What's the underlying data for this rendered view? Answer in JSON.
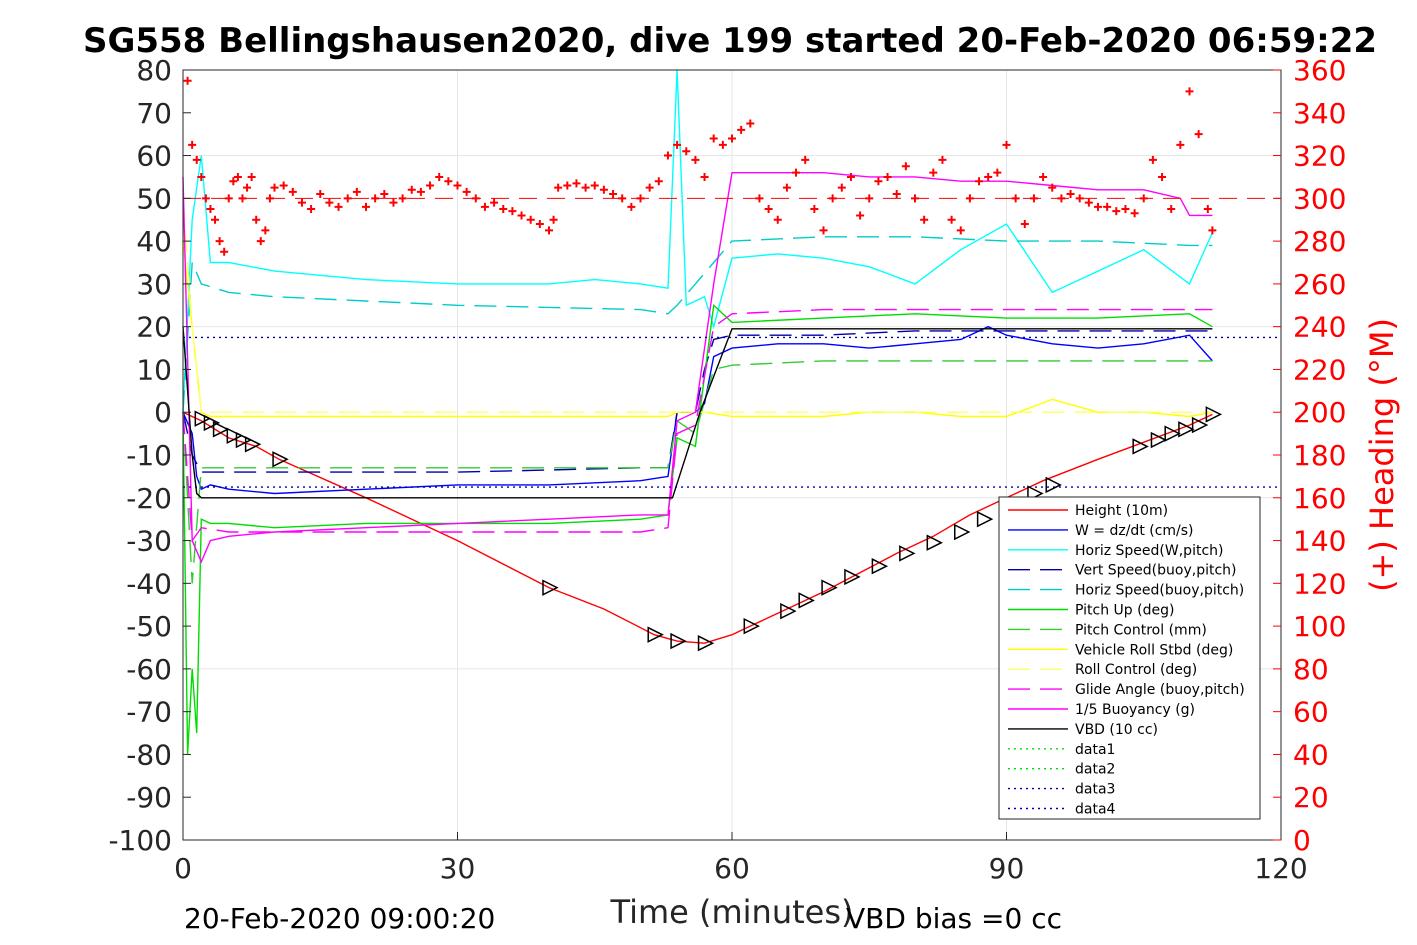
{
  "chart_data": {
    "type": "line",
    "title": "SG558 Bellingshausen2020, dive 199 started 20-Feb-2020 06:59:22",
    "xlabel": "Time (minutes)",
    "ylabel": "",
    "y2label": "(+) Heading (°M)",
    "xlim": [
      0,
      120
    ],
    "ylim": [
      -100,
      80
    ],
    "y2lim": [
      0,
      360
    ],
    "xticks": [
      "0",
      "30",
      "60",
      "90",
      "120"
    ],
    "yticks": [
      "80",
      "70",
      "60",
      "50",
      "40",
      "30",
      "20",
      "10",
      "0",
      "-10",
      "-20",
      "-30",
      "-40",
      "-50",
      "-60",
      "-70",
      "-80",
      "-90",
      "-100"
    ],
    "y2ticks": [
      "360",
      "340",
      "320",
      "300",
      "280",
      "260",
      "240",
      "220",
      "200",
      "180",
      "160",
      "140",
      "120",
      "100",
      "80",
      "60",
      "40",
      "20",
      "0"
    ],
    "grid": true,
    "legend_position": "bottom-right",
    "footer_left": "20-Feb-2020 09:00:20",
    "footer_right": "VBD bias =0 cc",
    "colors": {
      "red": "#ff0000",
      "blue": "#0000ff",
      "cyan": "#00ffff",
      "darkblue": "#0000aa",
      "green": "#00dd00",
      "yellow": "#ffff00",
      "magenta": "#ff00ff",
      "black": "#000000"
    },
    "series": [
      {
        "name": "Height (10m)",
        "color": "#ff0000",
        "style": "solid",
        "x": [
          0,
          2,
          5,
          8,
          10.5,
          20,
          30,
          40,
          46,
          51.5,
          54,
          57,
          60,
          62,
          66,
          70,
          74,
          78,
          82,
          86,
          90,
          94,
          100,
          105,
          110,
          112.5
        ],
        "y": [
          0,
          -2,
          -6,
          -8,
          -11,
          -20,
          -30,
          -41,
          -46,
          -52,
          -53.5,
          -54,
          -52,
          -50,
          -46,
          -42,
          -37.5,
          -33,
          -29,
          -24,
          -20,
          -16,
          -11,
          -7,
          -3,
          -0.5
        ]
      },
      {
        "name": "W = dz/dt (cm/s)",
        "color": "#0000ff",
        "style": "solid",
        "x": [
          0,
          1,
          1.5,
          2,
          3,
          5,
          10,
          20,
          30,
          40,
          50,
          53,
          54,
          56,
          57,
          58,
          60,
          65,
          70,
          75,
          80,
          85,
          88,
          90,
          95,
          100,
          105,
          110,
          112.5
        ],
        "y": [
          0,
          -5,
          -15,
          -18,
          -17,
          -18,
          -19,
          -18,
          -17,
          -17,
          -16,
          -15,
          0,
          0,
          2,
          13,
          15,
          16,
          16,
          15,
          16,
          17,
          20,
          18,
          16,
          15,
          16,
          18,
          12
        ]
      },
      {
        "name": "Horiz Speed(W,pitch)",
        "color": "#00ffff",
        "style": "solid",
        "x": [
          0,
          1,
          2,
          3,
          5,
          10,
          20,
          30,
          40,
          45,
          50,
          53,
          54,
          55,
          57,
          58,
          60,
          65,
          70,
          75,
          80,
          85,
          90,
          95,
          100,
          105,
          110,
          112.5
        ],
        "y": [
          0,
          45,
          60,
          35,
          35,
          33,
          31,
          30,
          30,
          31,
          30,
          29,
          80,
          25,
          27,
          20,
          36,
          37,
          36,
          34,
          30,
          38,
          44,
          28,
          33,
          38,
          30,
          42
        ]
      },
      {
        "name": "Vert Speed(buoy,pitch)",
        "color": "#0000aa",
        "style": "dashed",
        "x": [
          0,
          1,
          2,
          5,
          10,
          20,
          30,
          40,
          50,
          53,
          54,
          56,
          57,
          58,
          60,
          70,
          80,
          90,
          100,
          110,
          112.5
        ],
        "y": [
          0,
          -10,
          -14,
          -14,
          -14,
          -14,
          -14,
          -13.5,
          -13,
          -13,
          0,
          0,
          10,
          17,
          18,
          18,
          19,
          19,
          19,
          19,
          19
        ]
      },
      {
        "name": "Horiz Speed(buoy,pitch)",
        "color": "#00cccc",
        "style": "dashed",
        "x": [
          0,
          1,
          2,
          5,
          10,
          20,
          30,
          40,
          50,
          53,
          54,
          56,
          58,
          60,
          70,
          80,
          90,
          100,
          110,
          112.5
        ],
        "y": [
          0,
          35,
          30,
          28,
          27,
          26,
          25,
          24.5,
          24,
          23,
          25,
          30,
          35,
          40,
          41,
          41,
          40,
          40,
          39,
          39
        ]
      },
      {
        "name": "Pitch Up (deg)",
        "color": "#00dd00",
        "style": "solid",
        "x": [
          0,
          0.5,
          1,
          1.5,
          2,
          3,
          5,
          10,
          20,
          30,
          40,
          50,
          53,
          54,
          56,
          58,
          60,
          70,
          80,
          90,
          100,
          110,
          112.5
        ],
        "y": [
          0,
          -80,
          -60,
          -75,
          -25,
          -26,
          -26,
          -27,
          -26,
          -26,
          -26,
          -25,
          -24,
          -6,
          -8,
          25,
          21,
          22,
          23,
          22,
          22,
          23,
          20
        ]
      },
      {
        "name": "Pitch Control (mm)",
        "color": "#33cc33",
        "style": "dashed",
        "x": [
          0,
          1,
          2,
          5,
          10,
          20,
          30,
          40,
          50,
          53,
          54,
          56,
          58,
          60,
          70,
          80,
          90,
          100,
          110,
          112.5
        ],
        "y": [
          0,
          -40,
          -13,
          -13,
          -13,
          -13,
          -13,
          -13,
          -13,
          -13,
          -2,
          -5,
          10,
          11,
          12,
          12,
          12,
          12,
          12,
          12
        ]
      },
      {
        "name": "Vehicle Roll Stbd (deg)",
        "color": "#ffff00",
        "style": "solid",
        "x": [
          0,
          1,
          2,
          3,
          5,
          10,
          15,
          20,
          30,
          40,
          50,
          53,
          54,
          55,
          57,
          60,
          65,
          70,
          75,
          80,
          85,
          90,
          95,
          100,
          105,
          110,
          112.5
        ],
        "y": [
          40,
          20,
          0,
          -1,
          -1,
          -1,
          -1,
          -1,
          -1,
          -1,
          -1,
          -1,
          0,
          0,
          0,
          -1,
          -1,
          -1,
          0,
          0,
          -1,
          -1,
          3,
          0,
          0,
          -1,
          0
        ]
      },
      {
        "name": "Roll Control (deg)",
        "color": "#ffff66",
        "style": "dashed",
        "x": [
          0,
          1,
          2,
          5,
          10,
          20,
          30,
          40,
          50,
          55,
          60,
          70,
          80,
          90,
          100,
          110,
          112.5
        ],
        "y": [
          50,
          20,
          0,
          0,
          0,
          0,
          0,
          0,
          0,
          0,
          0,
          0,
          0,
          0,
          0,
          0,
          0
        ]
      },
      {
        "name": "Glide Angle (buoy,pitch)",
        "color": "#ff00ff",
        "style": "dashed",
        "x": [
          0,
          1,
          2,
          5,
          10,
          20,
          30,
          40,
          50,
          53,
          54,
          56,
          58,
          60,
          70,
          80,
          90,
          100,
          110,
          112.5
        ],
        "y": [
          0,
          -30,
          -27,
          -28,
          -28,
          -28,
          -28,
          -28,
          -28,
          -27,
          -5,
          -3,
          20,
          23,
          24,
          24,
          24,
          24,
          24,
          24
        ]
      },
      {
        "name": "1/5 Buoyancy (g)",
        "color": "#ff00ff",
        "style": "solid",
        "x": [
          0,
          1,
          2,
          3,
          5,
          10,
          20,
          30,
          40,
          50,
          53,
          54,
          56,
          58,
          60,
          65,
          70,
          75,
          80,
          85,
          90,
          95,
          100,
          105,
          109,
          110,
          112.5
        ],
        "y": [
          55,
          -30,
          -35,
          -30,
          -29,
          -28,
          -27,
          -26,
          -25,
          -24,
          -24,
          -2,
          0,
          30,
          56,
          56,
          56,
          55,
          55,
          54,
          54,
          53,
          52,
          52,
          50,
          46,
          46
        ]
      },
      {
        "name": "VBD (10 cc)",
        "color": "#000000",
        "style": "solid",
        "x": [
          0,
          1,
          1.5,
          2,
          10,
          20,
          30,
          40,
          50,
          53.5,
          56.5,
          60,
          70,
          80,
          90,
          100,
          110,
          112.5
        ],
        "y": [
          20,
          -10,
          -19,
          -20,
          -20,
          -20,
          -20,
          -20,
          -20,
          -20,
          0,
          19.5,
          19.5,
          19.5,
          19.5,
          19.5,
          19.5,
          19.5
        ]
      },
      {
        "name": "data1",
        "color": "#00dd00",
        "style": "dotted",
        "x": [],
        "y": []
      },
      {
        "name": "data2",
        "color": "#00dd00",
        "style": "dotted",
        "x": [],
        "y": []
      },
      {
        "name": "data3",
        "color": "#0000aa",
        "style": "dotted",
        "x": [
          0,
          120
        ],
        "y": [
          -17.5,
          -17.5
        ]
      },
      {
        "name": "data4",
        "color": "#0000aa",
        "style": "dotted",
        "x": [
          0,
          120
        ],
        "y": [
          17.5,
          17.5
        ]
      }
    ],
    "heading": {
      "axis": "right",
      "marker": "+",
      "color": "#ff0000",
      "reference_value": 300,
      "x": [
        0.5,
        1,
        1.5,
        2,
        2.5,
        3,
        3.5,
        4,
        4.5,
        5,
        5.5,
        6,
        6.5,
        7,
        7.5,
        8,
        8.5,
        9,
        9.5,
        10,
        11,
        12,
        13,
        14,
        15,
        16,
        17,
        18,
        19,
        20,
        21,
        22,
        23,
        24,
        25,
        26,
        27,
        28,
        29,
        30,
        31,
        32,
        33,
        34,
        35,
        36,
        37,
        38,
        39,
        40,
        40.5,
        41,
        42,
        43,
        44,
        45,
        46,
        47,
        48,
        49,
        50,
        51,
        52,
        53,
        54,
        55,
        56,
        57,
        58,
        59,
        60,
        61,
        62,
        63,
        64,
        65,
        66,
        67,
        68,
        69,
        70,
        71,
        72,
        73,
        74,
        75,
        76,
        77,
        78,
        79,
        80,
        81,
        82,
        83,
        84,
        85,
        86,
        87,
        88,
        89,
        90,
        91,
        92,
        93,
        94,
        95,
        96,
        97,
        98,
        99,
        100,
        101,
        102,
        103,
        104,
        105,
        106,
        107,
        108,
        109,
        110,
        111,
        112,
        112.5
      ],
      "y": [
        355,
        325,
        318,
        310,
        300,
        295,
        290,
        280,
        275,
        300,
        308,
        310,
        300,
        305,
        310,
        290,
        280,
        285,
        300,
        305,
        306,
        303,
        298,
        295,
        302,
        298,
        296,
        300,
        303,
        296,
        300,
        302,
        298,
        300,
        304,
        303,
        306,
        310,
        308,
        306,
        303,
        300,
        296,
        298,
        295,
        294,
        292,
        290,
        288,
        285,
        290,
        305,
        306,
        307,
        305,
        306,
        304,
        302,
        300,
        296,
        300,
        305,
        308,
        320,
        325,
        322,
        318,
        310,
        328,
        325,
        328,
        332,
        335,
        300,
        295,
        290,
        305,
        312,
        318,
        295,
        285,
        300,
        305,
        310,
        292,
        300,
        308,
        310,
        302,
        315,
        300,
        290,
        312,
        318,
        290,
        285,
        300,
        308,
        310,
        312,
        325,
        300,
        288,
        300,
        310,
        305,
        300,
        302,
        300,
        298,
        296,
        296,
        294,
        295,
        293,
        300,
        318,
        310,
        295,
        325,
        350,
        330,
        295,
        285
      ]
    },
    "markers": {
      "x": [
        2,
        3,
        4,
        5.5,
        6.5,
        7.5,
        10.5,
        40,
        51.5,
        54,
        57,
        62,
        66,
        68,
        70.5,
        73,
        76,
        79,
        82,
        85,
        87.5,
        90,
        93,
        95,
        104.5,
        106.5,
        108,
        109.5,
        111,
        112.5
      ],
      "y": [
        -1.5,
        -2.5,
        -4,
        -5.5,
        -6.5,
        -7.5,
        -11,
        -41,
        -52,
        -53.5,
        -54,
        -50,
        -46.5,
        -44,
        -41,
        -38.5,
        -36,
        -33,
        -30.5,
        -28,
        -25,
        -22,
        -19,
        -17,
        -8,
        -6.5,
        -5,
        -4,
        -3,
        -0.5
      ]
    }
  }
}
